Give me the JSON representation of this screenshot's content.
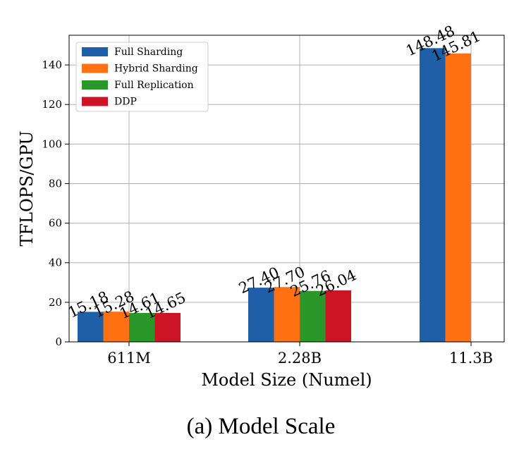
{
  "chart_data": {
    "type": "bar",
    "categories": [
      "611M",
      "2.28B",
      "11.3B"
    ],
    "series": [
      {
        "name": "Full Sharding",
        "color": "#1f5fa8",
        "values": [
          15.18,
          27.4,
          148.48
        ],
        "labels": [
          "15.18",
          "27.40",
          "148.48"
        ]
      },
      {
        "name": "Hybrid Sharding",
        "color": "#ff7112",
        "values": [
          15.28,
          27.7,
          145.81
        ],
        "labels": [
          "15.28",
          "27.70",
          "145.81"
        ]
      },
      {
        "name": "Full Replication",
        "color": "#2a972a",
        "values": [
          14.61,
          25.76,
          null
        ],
        "labels": [
          "14.61",
          "25.76",
          ""
        ]
      },
      {
        "name": "DDP",
        "color": "#cc1426",
        "values": [
          14.65,
          26.04,
          null
        ],
        "labels": [
          "14.65",
          "26.04",
          ""
        ]
      }
    ],
    "xlabel": "Model Size (Numel)",
    "ylabel": "TFLOPS/GPU",
    "ylim": [
      0,
      155
    ],
    "yticks": [
      0,
      20,
      40,
      60,
      80,
      100,
      120,
      140
    ],
    "grid": true,
    "legend_position": "top-left"
  },
  "caption": "(a) Model Scale"
}
